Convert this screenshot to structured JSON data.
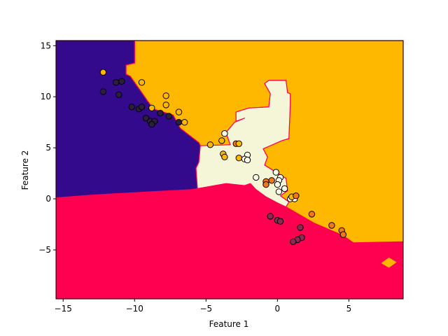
{
  "chart_data": {
    "type": "scatter",
    "title": "",
    "xlabel": "Feature 1",
    "ylabel": "Feature 2",
    "xlim": [
      -15.5,
      8.8
    ],
    "ylim": [
      -9.8,
      15.5
    ],
    "xticks": [
      -15,
      -10,
      -5,
      0,
      5
    ],
    "yticks": [
      -5,
      0,
      5,
      10,
      15
    ],
    "xtick_labels": [
      "−15",
      "−10",
      "−5",
      "0",
      "5"
    ],
    "ytick_labels": [
      "−5",
      "0",
      "5",
      "10",
      "15"
    ],
    "grid": false,
    "legend": "none",
    "region_colors": {
      "purple": "#330a8c",
      "red": "#ff0050",
      "orange": "#ffb800",
      "cream": "#f5f6d8"
    },
    "regions": [
      {
        "class": "orange",
        "polygon": [
          [
            8.8,
            15.5
          ],
          [
            -10,
            15.5
          ],
          [
            -10,
            13.3
          ],
          [
            -10.6,
            13.1
          ],
          [
            -10.6,
            12.2
          ],
          [
            -10.3,
            12.0
          ],
          [
            -9.7,
            10.8
          ],
          [
            -8.7,
            8.8
          ],
          [
            -7.3,
            8.2
          ],
          [
            -6.8,
            6.9
          ],
          [
            -5.5,
            5.5
          ],
          [
            -5.4,
            5.2
          ],
          [
            -3.3,
            5.3
          ],
          [
            -3.6,
            6.5
          ],
          [
            -3.0,
            7.5
          ],
          [
            -2.3,
            7.9
          ],
          [
            -2.9,
            7.6
          ],
          [
            -2.9,
            8.5
          ],
          [
            -2.0,
            8.9
          ],
          [
            -0.6,
            9.0
          ],
          [
            -0.5,
            10.3
          ],
          [
            -0.9,
            11.3
          ],
          [
            -0.6,
            11.6
          ],
          [
            0.6,
            11.6
          ],
          [
            0.7,
            10.4
          ],
          [
            0.9,
            10.3
          ],
          [
            0.9,
            9.3
          ],
          [
            0.8,
            5.9
          ],
          [
            0.3,
            5.7
          ],
          [
            -1.0,
            4.9
          ],
          [
            -0.7,
            4.1
          ],
          [
            -0.9,
            3.3
          ],
          [
            0.6,
            2.0
          ],
          [
            0.7,
            0.8
          ],
          [
            0.2,
            0.3
          ],
          [
            0.8,
            -0.3
          ],
          [
            0.6,
            -0.8
          ],
          [
            2.6,
            -2.4
          ],
          [
            4.6,
            -3.6
          ],
          [
            5.3,
            -4.3
          ],
          [
            8.8,
            -4.2
          ]
        ]
      },
      {
        "class": "purple",
        "polygon": [
          [
            -15.5,
            15.5
          ],
          [
            -10,
            15.5
          ],
          [
            -10,
            13.3
          ],
          [
            -10.6,
            13.1
          ],
          [
            -10.6,
            12.2
          ],
          [
            -10.3,
            12.0
          ],
          [
            -9.7,
            10.8
          ],
          [
            -8.7,
            8.8
          ],
          [
            -7.3,
            8.2
          ],
          [
            -6.8,
            6.9
          ],
          [
            -5.5,
            5.5
          ],
          [
            -5.4,
            5.2
          ],
          [
            -5.5,
            3.6
          ],
          [
            -5.7,
            3.0
          ],
          [
            -5.6,
            1.0
          ],
          [
            -6.0,
            0.9
          ],
          [
            -10.1,
            0.6
          ],
          [
            -12.6,
            0.4
          ],
          [
            -15.5,
            0.1
          ]
        ]
      },
      {
        "class": "cream",
        "polygon": [
          [
            -5.4,
            5.2
          ],
          [
            -3.3,
            5.3
          ],
          [
            -3.6,
            6.5
          ],
          [
            -3.0,
            7.5
          ],
          [
            -2.3,
            7.9
          ],
          [
            -2.9,
            7.6
          ],
          [
            -2.9,
            8.5
          ],
          [
            -2.0,
            8.9
          ],
          [
            -0.6,
            9.0
          ],
          [
            -0.5,
            10.3
          ],
          [
            -0.9,
            11.3
          ],
          [
            -0.6,
            11.6
          ],
          [
            0.6,
            11.6
          ],
          [
            0.7,
            10.4
          ],
          [
            0.9,
            10.3
          ],
          [
            0.9,
            9.3
          ],
          [
            0.8,
            5.9
          ],
          [
            0.3,
            5.7
          ],
          [
            -1.0,
            4.9
          ],
          [
            -0.7,
            4.1
          ],
          [
            -0.9,
            3.3
          ],
          [
            0.6,
            2.0
          ],
          [
            0.7,
            0.8
          ],
          [
            0.2,
            0.3
          ],
          [
            0.8,
            -0.3
          ],
          [
            0.6,
            -0.8
          ],
          [
            0.0,
            -0.4
          ],
          [
            -0.8,
            0.2
          ],
          [
            -1.5,
            0.9
          ],
          [
            -1.9,
            1.5
          ],
          [
            -2.3,
            1.3
          ],
          [
            -3.6,
            1.5
          ],
          [
            -5.6,
            1.0
          ],
          [
            -5.7,
            3.0
          ],
          [
            -5.5,
            3.6
          ]
        ]
      },
      {
        "class": "orange",
        "polygon": [
          [
            7.2,
            -6.3
          ],
          [
            7.8,
            -5.7
          ],
          [
            8.4,
            -6.2
          ],
          [
            7.8,
            -6.8
          ]
        ]
      }
    ],
    "point_colors": {
      "purple": "#2b1e3e",
      "red": "#8b2a55",
      "orange": "#ffb800",
      "darkorange": "#f07818",
      "cream": "#fbfbe8"
    },
    "points": [
      {
        "x": -12.2,
        "y": 12.4,
        "class": "orange"
      },
      {
        "x": -11.3,
        "y": 11.4,
        "class": "purple"
      },
      {
        "x": -10.9,
        "y": 11.5,
        "class": "purple"
      },
      {
        "x": -9.5,
        "y": 11.4,
        "class": "orange"
      },
      {
        "x": -12.2,
        "y": 10.5,
        "class": "purple"
      },
      {
        "x": -11.1,
        "y": 10.2,
        "class": "purple"
      },
      {
        "x": -7.8,
        "y": 10.1,
        "class": "orange"
      },
      {
        "x": -7.8,
        "y": 9.2,
        "class": "orange"
      },
      {
        "x": -10.2,
        "y": 9.0,
        "class": "purple"
      },
      {
        "x": -9.7,
        "y": 8.8,
        "class": "purple"
      },
      {
        "x": -9.5,
        "y": 9.0,
        "class": "purple"
      },
      {
        "x": -8.8,
        "y": 8.9,
        "class": "orange"
      },
      {
        "x": -6.9,
        "y": 8.5,
        "class": "orange"
      },
      {
        "x": -8.2,
        "y": 8.4,
        "class": "purple"
      },
      {
        "x": -7.6,
        "y": 8.1,
        "class": "purple"
      },
      {
        "x": -9.2,
        "y": 7.9,
        "class": "purple"
      },
      {
        "x": -8.9,
        "y": 7.6,
        "class": "purple"
      },
      {
        "x": -8.6,
        "y": 7.6,
        "class": "purple"
      },
      {
        "x": -8.8,
        "y": 7.3,
        "class": "purple"
      },
      {
        "x": -6.9,
        "y": 7.5,
        "class": "purple"
      },
      {
        "x": -6.5,
        "y": 7.5,
        "class": "orange"
      },
      {
        "x": -3.7,
        "y": 6.4,
        "class": "cream"
      },
      {
        "x": -3.9,
        "y": 5.7,
        "class": "orange"
      },
      {
        "x": -4.7,
        "y": 5.3,
        "class": "orange"
      },
      {
        "x": -2.9,
        "y": 5.4,
        "class": "darkorange"
      },
      {
        "x": -2.7,
        "y": 5.4,
        "class": "orange"
      },
      {
        "x": -3.8,
        "y": 4.4,
        "class": "orange"
      },
      {
        "x": -3.7,
        "y": 4.1,
        "class": "orange"
      },
      {
        "x": -2.7,
        "y": 4.0,
        "class": "orange"
      },
      {
        "x": -2.1,
        "y": 4.3,
        "class": "cream"
      },
      {
        "x": -2.3,
        "y": 3.9,
        "class": "cream"
      },
      {
        "x": -2.1,
        "y": 3.8,
        "class": "cream"
      },
      {
        "x": -1.5,
        "y": 2.1,
        "class": "cream"
      },
      {
        "x": -0.1,
        "y": 2.6,
        "class": "cream"
      },
      {
        "x": 0.2,
        "y": 2.1,
        "class": "cream"
      },
      {
        "x": 0.1,
        "y": 1.8,
        "class": "cream"
      },
      {
        "x": -0.8,
        "y": 1.7,
        "class": "darkorange"
      },
      {
        "x": -0.4,
        "y": 1.8,
        "class": "darkorange"
      },
      {
        "x": -0.8,
        "y": 1.4,
        "class": "darkorange"
      },
      {
        "x": 0.0,
        "y": 1.4,
        "class": "cream"
      },
      {
        "x": 0.5,
        "y": 1.0,
        "class": "cream"
      },
      {
        "x": 0.1,
        "y": 0.7,
        "class": "cream"
      },
      {
        "x": 0.9,
        "y": 0.0,
        "class": "cream"
      },
      {
        "x": 1.2,
        "y": 0.0,
        "class": "cream"
      },
      {
        "x": 1.0,
        "y": 0.2,
        "class": "orange"
      },
      {
        "x": 1.3,
        "y": 0.3,
        "class": "darkorange"
      },
      {
        "x": 2.4,
        "y": -1.5,
        "class": "darkorange"
      },
      {
        "x": -0.5,
        "y": -1.7,
        "class": "red"
      },
      {
        "x": 0.0,
        "y": -2.1,
        "class": "red"
      },
      {
        "x": 0.2,
        "y": -2.2,
        "class": "red"
      },
      {
        "x": 3.8,
        "y": -2.6,
        "class": "darkorange"
      },
      {
        "x": 4.5,
        "y": -3.1,
        "class": "darkorange"
      },
      {
        "x": 4.6,
        "y": -3.5,
        "class": "darkorange"
      },
      {
        "x": 1.6,
        "y": -2.8,
        "class": "red"
      },
      {
        "x": 1.7,
        "y": -3.8,
        "class": "red"
      },
      {
        "x": 1.4,
        "y": -4.0,
        "class": "red"
      },
      {
        "x": 1.1,
        "y": -4.2,
        "class": "red"
      }
    ]
  }
}
